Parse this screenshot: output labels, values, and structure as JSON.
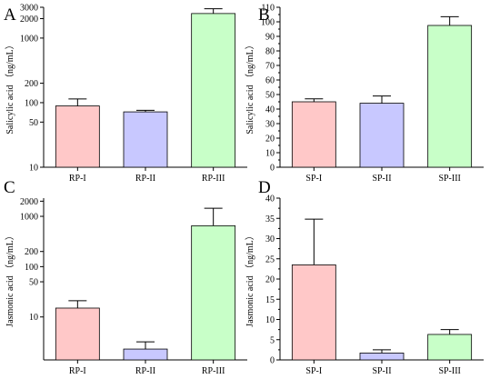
{
  "chart_data": [
    {
      "panel": "A",
      "type": "bar",
      "yscale": "log",
      "ylabel": "Salicylic acid （ng/mL）",
      "categories": [
        "RP-I",
        "RP-II",
        "RP-III"
      ],
      "values": [
        89,
        72,
        2400
      ],
      "errors": [
        25,
        4,
        450
      ],
      "colors": [
        "#ffc8c8",
        "#c8c8ff",
        "#c8ffc8"
      ],
      "ylim": [
        10,
        3000
      ],
      "yticks": [
        10,
        50,
        100,
        200,
        1000,
        2000,
        3000
      ]
    },
    {
      "panel": "B",
      "type": "bar",
      "yscale": "linear",
      "ylabel": "Salicylic acid （ng/mL）",
      "categories": [
        "SP-I",
        "SP-II",
        "SP-III"
      ],
      "values": [
        45,
        44,
        97.5
      ],
      "errors": [
        2,
        5,
        6
      ],
      "colors": [
        "#ffc8c8",
        "#c8c8ff",
        "#c8ffc8"
      ],
      "ylim": [
        0,
        110
      ],
      "yticks": [
        0,
        10,
        20,
        30,
        40,
        50,
        60,
        70,
        80,
        90,
        100,
        110
      ]
    },
    {
      "panel": "C",
      "type": "bar",
      "yscale": "log",
      "ylabel": "Jasmonic acid （ng/mL）",
      "categories": [
        "RP-I",
        "RP-II",
        "RP-III"
      ],
      "values": [
        15,
        2.3,
        650
      ],
      "errors": [
        6,
        0.9,
        800
      ],
      "colors": [
        "#ffc8c8",
        "#c8c8ff",
        "#c8ffc8"
      ],
      "ylim": [
        1.4,
        2300
      ],
      "yticks": [
        10,
        50,
        100,
        200,
        1000,
        2000
      ]
    },
    {
      "panel": "D",
      "type": "bar",
      "yscale": "linear",
      "ylabel": "Jasmonic acid （ng/mL）",
      "categories": [
        "SP-I",
        "SP-II",
        "SP-III"
      ],
      "values": [
        23.5,
        1.7,
        6.3
      ],
      "errors": [
        11.3,
        0.8,
        1.2
      ],
      "colors": [
        "#ffc8c8",
        "#c8c8ff",
        "#c8ffc8"
      ],
      "ylim": [
        0,
        40
      ],
      "yticks": [
        0,
        5,
        10,
        15,
        20,
        25,
        30,
        35,
        40
      ]
    }
  ]
}
